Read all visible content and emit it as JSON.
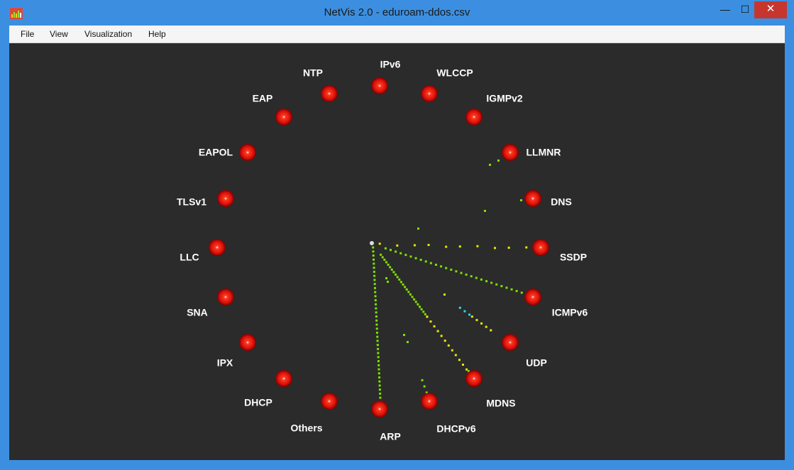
{
  "window": {
    "title": "NetVis 2.0 - eduroam-ddos.csv",
    "controls": {
      "minimize": "—",
      "maximize": "☐",
      "close": "✕"
    }
  },
  "menu": {
    "items": [
      {
        "label": "File"
      },
      {
        "label": "View"
      },
      {
        "label": "Visualization"
      },
      {
        "label": "Help"
      }
    ]
  },
  "visualization": {
    "colors": {
      "background": "#2b2b2b",
      "node": "#e3110c",
      "label": "#ffffff",
      "packet_green": "#7fe000",
      "packet_yellow": "#e8e800",
      "packet_cyan": "#30d8e8",
      "center": "#dddddd"
    },
    "protocols": [
      {
        "label": "IPv6"
      },
      {
        "label": "WLCCP"
      },
      {
        "label": "IGMPv2"
      },
      {
        "label": "LLMNR"
      },
      {
        "label": "DNS"
      },
      {
        "label": "SSDP"
      },
      {
        "label": "ICMPv6"
      },
      {
        "label": "UDP"
      },
      {
        "label": "MDNS"
      },
      {
        "label": "DHCPv6"
      },
      {
        "label": "ARP"
      },
      {
        "label": "Others"
      },
      {
        "label": "DHCP"
      },
      {
        "label": "IPX"
      },
      {
        "label": "SNA"
      },
      {
        "label": "LLC"
      },
      {
        "label": "TLSv1"
      },
      {
        "label": "EAPOL"
      },
      {
        "label": "EAP"
      },
      {
        "label": "NTP"
      }
    ]
  }
}
